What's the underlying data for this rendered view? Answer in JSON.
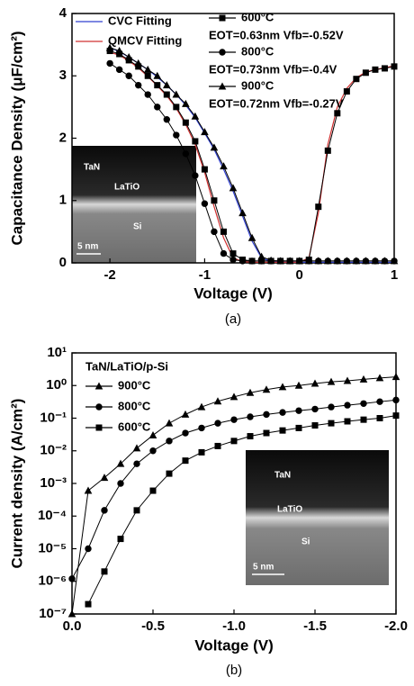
{
  "chart_data": [
    {
      "type": "line",
      "x_label": "Voltage (V)",
      "y_label": "Capacitance Density (μF/cm²)",
      "caption": "(a)",
      "xlim": [
        -2.4,
        1
      ],
      "xticks": [
        -2,
        -1,
        0,
        1
      ],
      "ylim": [
        0,
        4
      ],
      "yticks": [
        0,
        1,
        2,
        3,
        4
      ],
      "log_y": false,
      "x": [
        -2,
        -1.9,
        -1.8,
        -1.7,
        -1.6,
        -1.5,
        -1.4,
        -1.3,
        -1.2,
        -1.1,
        -1,
        -0.9,
        -0.8,
        -0.7,
        -0.6,
        -0.5,
        -0.4,
        -0.3,
        -0.2,
        -0.1,
        0,
        0.1,
        0.2,
        0.3,
        0.4,
        0.5,
        0.6,
        0.7,
        0.8,
        0.9,
        1
      ],
      "series": [
        {
          "name": "CVC Fitting",
          "color": "#3040d0",
          "marker": "none",
          "values": [
            3.45,
            3.39,
            3.3,
            3.2,
            3.1,
            2.98,
            2.85,
            2.7,
            2.53,
            2.33,
            2.08,
            1.82,
            1.5,
            1.15,
            0.75,
            0.35,
            0.08,
            0.02,
            0.01,
            0.01,
            0.01,
            0.01,
            0.01,
            0.01,
            0.01,
            0.01,
            0.01,
            0.01,
            0.01,
            0.01,
            0.01
          ]
        },
        {
          "name": "QMCV Fitting",
          "color": "#d03030",
          "marker": "none",
          "values": [
            3.38,
            3.33,
            3.24,
            3.13,
            2.99,
            2.84,
            2.68,
            2.48,
            2.22,
            1.9,
            1.45,
            0.9,
            0.4,
            0.08,
            0.02,
            0.01,
            0.01,
            0.01,
            0.01,
            0.01,
            0.01,
            0.08,
            0.8,
            1.9,
            2.5,
            2.8,
            2.97,
            3.06,
            3.1,
            3.13,
            3.16
          ]
        },
        {
          "name": "600°C",
          "color": "#000000",
          "marker": "square",
          "values": [
            3.4,
            3.35,
            3.25,
            3.15,
            3.0,
            2.85,
            2.7,
            2.5,
            2.25,
            1.95,
            1.5,
            1.0,
            0.5,
            0.15,
            0.05,
            0.03,
            0.03,
            0.03,
            0.03,
            0.03,
            0.03,
            0.05,
            0.9,
            1.8,
            2.4,
            2.75,
            2.95,
            3.05,
            3.1,
            3.12,
            3.15
          ]
        },
        {
          "name": "800°C",
          "color": "#000000",
          "marker": "circle",
          "values": [
            3.2,
            3.1,
            3.0,
            2.85,
            2.7,
            2.5,
            2.3,
            2.05,
            1.75,
            1.4,
            0.95,
            0.5,
            0.15,
            0.05,
            0.03,
            0.03,
            0.03,
            0.03,
            0.03,
            0.03,
            0.03,
            0.03,
            0.03,
            0.03,
            0.03,
            0.03,
            0.03,
            0.03,
            0.03,
            0.03,
            0.03
          ]
        },
        {
          "name": "900°C",
          "color": "#000000",
          "marker": "triangle",
          "values": [
            3.45,
            3.4,
            3.3,
            3.2,
            3.1,
            3.0,
            2.85,
            2.7,
            2.55,
            2.35,
            2.1,
            1.85,
            1.55,
            1.2,
            0.8,
            0.4,
            0.1,
            0.04,
            0.03,
            0.03,
            0.03,
            0.03,
            0.03,
            0.03,
            0.03,
            0.03,
            0.03,
            0.03,
            0.03,
            0.03,
            0.03
          ]
        }
      ],
      "annotations": [
        "EOT=0.63nm  Vfb=-0.52V",
        "EOT=0.73nm  Vfb=-0.4V",
        "EOT=0.72nm  Vfb=-0.27V"
      ],
      "inset_labels": [
        "TaN",
        "LaTiO",
        "Si",
        "5 nm"
      ]
    },
    {
      "type": "line",
      "x_label": "Voltage (V)",
      "y_label": "Current density (A/cm²)",
      "caption": "(b)",
      "legend_title": "TaN/LaTiO/p-Si",
      "xlim": [
        0,
        -2
      ],
      "xticks": [
        {
          "value": 0,
          "label": "0.0"
        },
        -0.5,
        {
          "value": -1,
          "label": "-1.0"
        },
        -1.5,
        {
          "value": -2,
          "label": "-2.0"
        }
      ],
      "ylim": [
        1e-07,
        10
      ],
      "log_y": true,
      "yticks": [
        {
          "value": 10,
          "label": "10¹"
        },
        {
          "value": 1,
          "label": "10⁰"
        },
        {
          "value": 0.1,
          "label": "10⁻¹"
        },
        {
          "value": 0.01,
          "label": "10⁻²"
        },
        {
          "value": 0.001,
          "label": "10⁻³"
        },
        {
          "value": 0.0001,
          "label": "10⁻⁴"
        },
        {
          "value": 1e-05,
          "label": "10⁻⁵"
        },
        {
          "value": 1e-06,
          "label": "10⁻⁶"
        },
        {
          "value": 1e-07,
          "label": "10⁻⁷"
        }
      ],
      "x": [
        0,
        -0.1,
        -0.2,
        -0.3,
        -0.4,
        -0.5,
        -0.6,
        -0.7,
        -0.8,
        -0.9,
        -1,
        -1.1,
        -1.2,
        -1.3,
        -1.4,
        -1.5,
        -1.6,
        -1.7,
        -1.8,
        -1.9,
        -2
      ],
      "series": [
        {
          "name": "900°C",
          "color": "#000000",
          "marker": "triangle",
          "values": [
            1e-07,
            0.0006,
            0.0015,
            0.004,
            0.012,
            0.03,
            0.07,
            0.13,
            0.22,
            0.33,
            0.45,
            0.6,
            0.75,
            0.9,
            1.0,
            1.15,
            1.3,
            1.4,
            1.55,
            1.7,
            1.85
          ]
        },
        {
          "name": "800°C",
          "color": "#000000",
          "marker": "circle",
          "values": [
            1.2e-06,
            1e-05,
            0.00015,
            0.001,
            0.004,
            0.01,
            0.02,
            0.035,
            0.05,
            0.07,
            0.09,
            0.11,
            0.13,
            0.15,
            0.17,
            0.19,
            0.22,
            0.25,
            0.28,
            0.32,
            0.36
          ]
        },
        {
          "name": "600°C",
          "color": "#000000",
          "marker": "square",
          "values": [
            null,
            2e-07,
            2e-06,
            2e-05,
            0.00015,
            0.0006,
            0.002,
            0.005,
            0.009,
            0.014,
            0.02,
            0.028,
            0.035,
            0.042,
            0.05,
            0.06,
            0.07,
            0.08,
            0.09,
            0.1,
            0.12
          ]
        }
      ],
      "inset_labels": [
        "TaN",
        "LaTiO",
        "Si",
        "5 nm"
      ]
    }
  ]
}
